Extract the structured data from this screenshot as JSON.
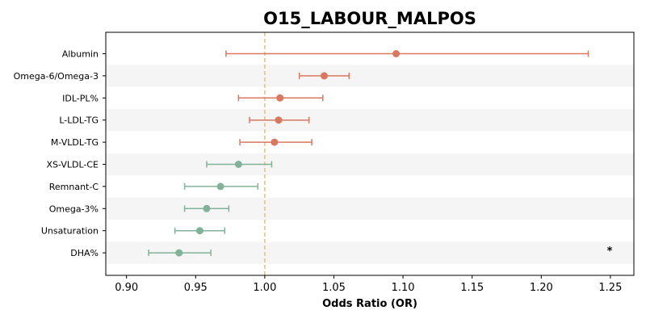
{
  "chart_data": {
    "type": "forest",
    "title": "O15_LABOUR_MALPOS",
    "xlabel": "Odds Ratio (OR)",
    "xlim": [
      0.885,
      1.267
    ],
    "xticks": [
      "0.90",
      "0.95",
      "1.00",
      "1.05",
      "1.10",
      "1.15",
      "1.20",
      "1.25"
    ],
    "xtick_values": [
      0.9,
      0.95,
      1.0,
      1.05,
      1.1,
      1.15,
      1.2,
      1.25
    ],
    "reference_line": 1.0,
    "grid": false,
    "colors": {
      "positive": "#d9785f",
      "negative": "#82b39a",
      "reference": "#f0c27a",
      "band": "#f5f5f5"
    },
    "rows": [
      {
        "label": "Albumin",
        "or": 1.095,
        "lo": 0.972,
        "hi": 1.234,
        "significant": false
      },
      {
        "label": "Omega-6/Omega-3",
        "or": 1.043,
        "lo": 1.025,
        "hi": 1.061,
        "significant": false
      },
      {
        "label": "IDL-PL%",
        "or": 1.011,
        "lo": 0.981,
        "hi": 1.042,
        "significant": false
      },
      {
        "label": "L-LDL-TG",
        "or": 1.01,
        "lo": 0.989,
        "hi": 1.032,
        "significant": false
      },
      {
        "label": "M-VLDL-TG",
        "or": 1.007,
        "lo": 0.982,
        "hi": 1.034,
        "significant": false
      },
      {
        "label": "XS-VLDL-CE",
        "or": 0.981,
        "lo": 0.958,
        "hi": 1.005,
        "significant": false
      },
      {
        "label": "Remnant-C",
        "or": 0.968,
        "lo": 0.942,
        "hi": 0.995,
        "significant": false
      },
      {
        "label": "Omega-3%",
        "or": 0.958,
        "lo": 0.942,
        "hi": 0.974,
        "significant": false
      },
      {
        "label": "Unsaturation",
        "or": 0.953,
        "lo": 0.935,
        "hi": 0.971,
        "significant": false
      },
      {
        "label": "DHA%",
        "or": 0.938,
        "lo": 0.916,
        "hi": 0.961,
        "significant": true
      }
    ],
    "significance_marker": "*"
  }
}
